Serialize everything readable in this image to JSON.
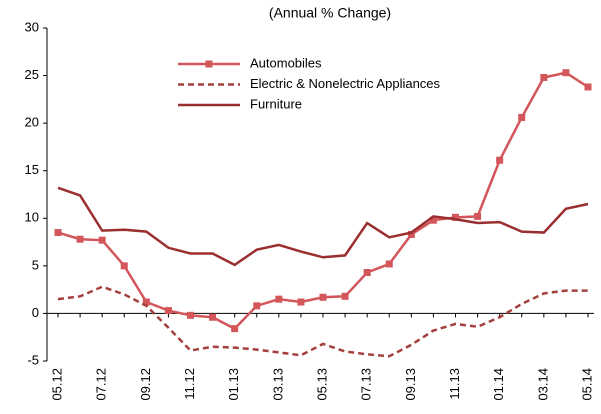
{
  "chart_data": {
    "type": "line",
    "title": "(Annual % Change)",
    "categories": [
      "05.12",
      null,
      "07.12",
      null,
      "09.12",
      null,
      "11.12",
      null,
      "01.13",
      null,
      "03.13",
      null,
      "05.13",
      null,
      "07.13",
      null,
      "09.13",
      null,
      "11.13",
      null,
      "01.14",
      null,
      "03.14",
      null,
      "05.14"
    ],
    "series": [
      {
        "name": "Automobiles",
        "color": "#d2565a",
        "marker": "square",
        "dash": "solid",
        "values": [
          8.5,
          7.8,
          7.7,
          5.0,
          1.2,
          0.3,
          -0.2,
          -0.4,
          -1.6,
          0.8,
          1.5,
          1.2,
          1.7,
          1.8,
          4.3,
          5.2,
          8.3,
          9.8,
          10.1,
          10.2,
          16.1,
          20.6,
          24.8,
          25.3,
          23.8
        ]
      },
      {
        "name": "Electric & Nonelectric Appliances",
        "color": "#a3403d",
        "dash": "dashed",
        "values": [
          1.5,
          1.8,
          2.8,
          2.0,
          0.8,
          -1.5,
          -3.9,
          -3.5,
          -3.6,
          -3.8,
          -4.1,
          -4.4,
          -3.2,
          -4.0,
          -4.3,
          -4.5,
          -3.3,
          -1.8,
          -1.1,
          -1.4,
          -0.4,
          1.0,
          2.1,
          2.4,
          2.4
        ]
      },
      {
        "name": "Furniture",
        "color": "#9b2f2f",
        "dash": "solid",
        "values": [
          13.2,
          12.4,
          8.7,
          8.8,
          8.6,
          6.9,
          6.3,
          6.3,
          5.1,
          6.7,
          7.2,
          6.5,
          5.9,
          6.1,
          9.5,
          8.0,
          8.5,
          10.2,
          9.9,
          9.5,
          9.6,
          8.6,
          8.5,
          11.0,
          11.5
        ]
      }
    ],
    "ylim": [
      -5,
      30
    ],
    "yticks": [
      -5,
      0,
      5,
      10,
      15,
      20,
      25,
      30
    ],
    "grid": false
  }
}
